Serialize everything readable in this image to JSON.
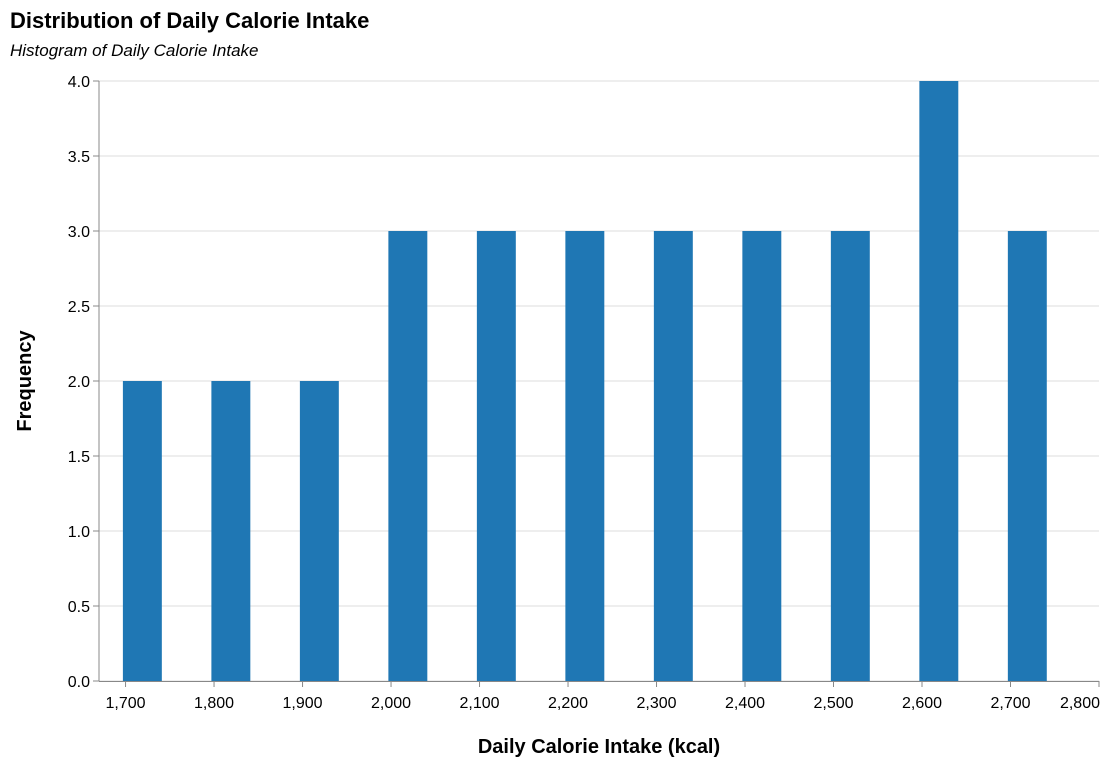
{
  "chart_data": {
    "type": "bar",
    "title": "Distribution of Daily Calorie Intake",
    "subtitle": "Histogram of Daily Calorie Intake",
    "xlabel": "Daily Calorie Intake (kcal)",
    "ylabel": "Frequency",
    "xlim": [
      1670,
      2800
    ],
    "ylim": [
      0,
      4
    ],
    "x_ticks": [
      1700,
      1800,
      1900,
      2000,
      2100,
      2200,
      2300,
      2400,
      2500,
      2600,
      2700,
      2800
    ],
    "x_tick_labels": [
      "1,700",
      "1,800",
      "1,900",
      "2,000",
      "2,100",
      "2,200",
      "2,300",
      "2,400",
      "2,500",
      "2,600",
      "2,700",
      "2,800"
    ],
    "y_ticks": [
      0,
      0.5,
      1,
      1.5,
      2,
      2.5,
      3,
      3.5,
      4
    ],
    "y_tick_labels": [
      "0.0",
      "0.5",
      "1.0",
      "1.5",
      "2.0",
      "2.5",
      "3.0",
      "3.5",
      "4.0"
    ],
    "bins": [
      {
        "x_start": 1697,
        "x_end": 1741,
        "count": 2
      },
      {
        "x_start": 1797,
        "x_end": 1841,
        "count": 2
      },
      {
        "x_start": 1897,
        "x_end": 1941,
        "count": 2
      },
      {
        "x_start": 1997,
        "x_end": 2041,
        "count": 3
      },
      {
        "x_start": 2097,
        "x_end": 2141,
        "count": 3
      },
      {
        "x_start": 2197,
        "x_end": 2241,
        "count": 3
      },
      {
        "x_start": 2297,
        "x_end": 2341,
        "count": 3
      },
      {
        "x_start": 2397,
        "x_end": 2441,
        "count": 3
      },
      {
        "x_start": 2497,
        "x_end": 2541,
        "count": 3
      },
      {
        "x_start": 2597,
        "x_end": 2641,
        "count": 4
      },
      {
        "x_start": 2697,
        "x_end": 2741,
        "count": 3
      }
    ],
    "bar_color": "#1f77b4",
    "grid": true
  }
}
